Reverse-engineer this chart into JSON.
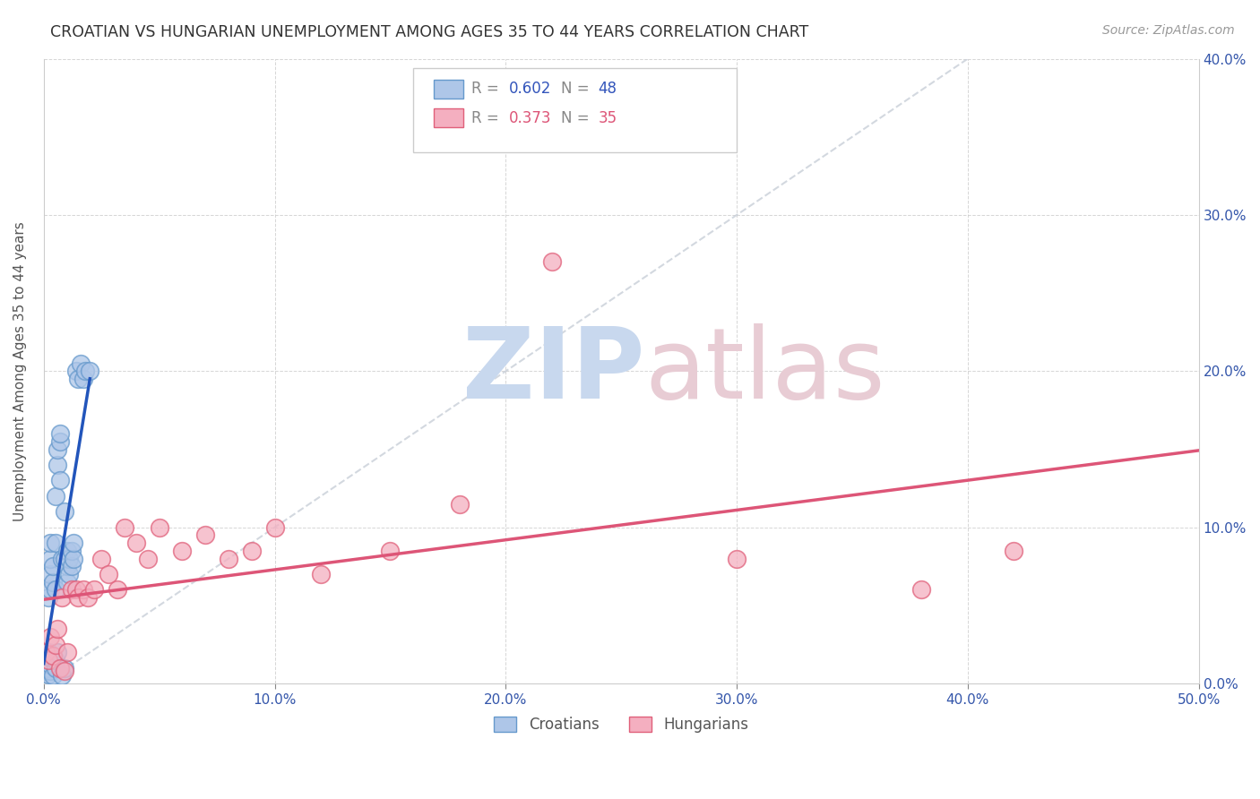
{
  "title": "CROATIAN VS HUNGARIAN UNEMPLOYMENT AMONG AGES 35 TO 44 YEARS CORRELATION CHART",
  "source": "Source: ZipAtlas.com",
  "ylabel": "Unemployment Among Ages 35 to 44 years",
  "xlim": [
    0.0,
    0.5
  ],
  "ylim": [
    0.0,
    0.4
  ],
  "croatian_color": "#aec6e8",
  "hungarian_color": "#f4afc0",
  "croatian_edge": "#6699cc",
  "hungarian_edge": "#e0607a",
  "trend_croatian_color": "#2255bb",
  "trend_hungarian_color": "#dd5577",
  "diagonal_color": "#c8cfd8",
  "legend_R_croatian": "0.602",
  "legend_N_croatian": "48",
  "legend_R_hungarian": "0.373",
  "legend_N_hungarian": "35",
  "cr_x": [
    0.001,
    0.001,
    0.001,
    0.002,
    0.002,
    0.002,
    0.002,
    0.003,
    0.003,
    0.003,
    0.003,
    0.003,
    0.003,
    0.004,
    0.004,
    0.004,
    0.004,
    0.005,
    0.005,
    0.005,
    0.005,
    0.005,
    0.006,
    0.006,
    0.006,
    0.007,
    0.007,
    0.007,
    0.008,
    0.008,
    0.009,
    0.009,
    0.009,
    0.01,
    0.01,
    0.01,
    0.011,
    0.011,
    0.012,
    0.012,
    0.013,
    0.013,
    0.014,
    0.015,
    0.016,
    0.017,
    0.018,
    0.02
  ],
  "cr_y": [
    0.008,
    0.012,
    0.018,
    0.006,
    0.01,
    0.02,
    0.055,
    0.008,
    0.012,
    0.06,
    0.07,
    0.08,
    0.09,
    0.005,
    0.015,
    0.065,
    0.075,
    0.01,
    0.015,
    0.06,
    0.09,
    0.12,
    0.14,
    0.15,
    0.02,
    0.13,
    0.155,
    0.16,
    0.005,
    0.08,
    0.01,
    0.08,
    0.11,
    0.065,
    0.075,
    0.085,
    0.07,
    0.08,
    0.075,
    0.085,
    0.08,
    0.09,
    0.2,
    0.195,
    0.205,
    0.195,
    0.2,
    0.2
  ],
  "hu_x": [
    0.001,
    0.002,
    0.003,
    0.004,
    0.005,
    0.006,
    0.007,
    0.008,
    0.009,
    0.01,
    0.012,
    0.014,
    0.015,
    0.017,
    0.019,
    0.022,
    0.025,
    0.028,
    0.032,
    0.035,
    0.04,
    0.045,
    0.05,
    0.06,
    0.07,
    0.08,
    0.09,
    0.1,
    0.12,
    0.15,
    0.18,
    0.22,
    0.3,
    0.38,
    0.42
  ],
  "hu_y": [
    0.02,
    0.015,
    0.03,
    0.018,
    0.025,
    0.035,
    0.01,
    0.055,
    0.008,
    0.02,
    0.06,
    0.06,
    0.055,
    0.06,
    0.055,
    0.06,
    0.08,
    0.07,
    0.06,
    0.1,
    0.09,
    0.08,
    0.1,
    0.085,
    0.095,
    0.08,
    0.085,
    0.1,
    0.07,
    0.085,
    0.115,
    0.27,
    0.08,
    0.06,
    0.085
  ]
}
